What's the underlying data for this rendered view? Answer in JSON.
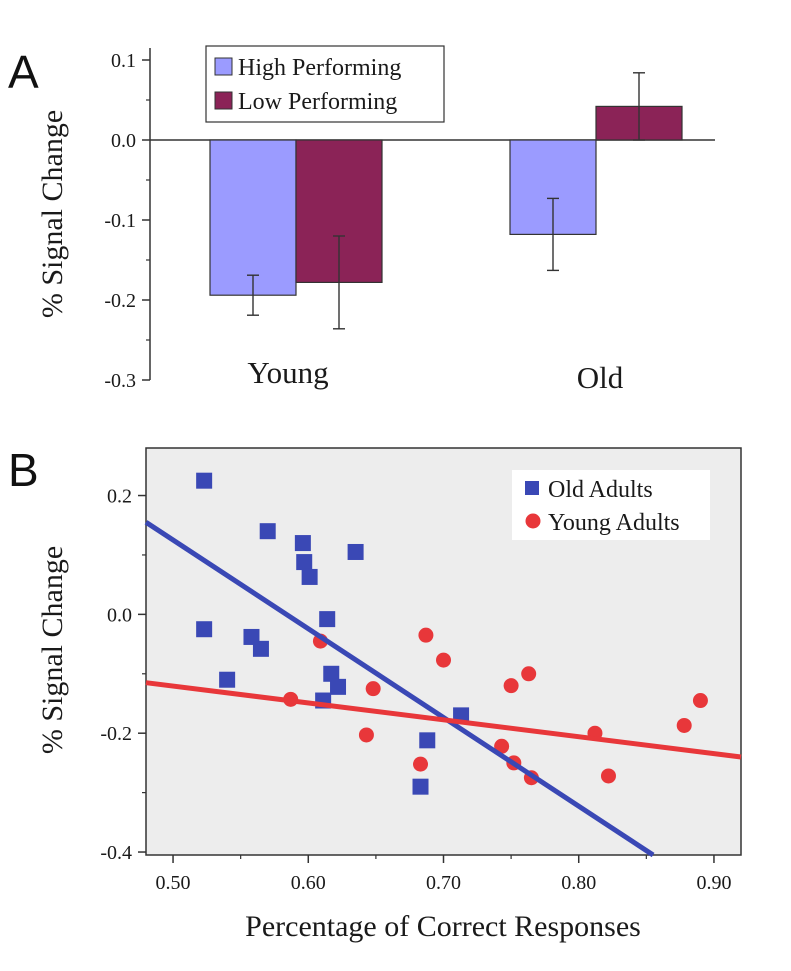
{
  "panels": {
    "a": "A",
    "b": "B"
  },
  "chart_data": [
    {
      "type": "bar",
      "panel": "A",
      "categories": [
        "Young",
        "Old"
      ],
      "series": [
        {
          "name": "High Performing",
          "color": "#9b9bff",
          "values": [
            -0.194,
            -0.118
          ],
          "errors": [
            0.025,
            0.045
          ]
        },
        {
          "name": "Low Performing",
          "color": "#8b2357",
          "values": [
            -0.178,
            0.042
          ],
          "errors": [
            0.058,
            0.042
          ]
        }
      ],
      "ylabel": "% Signal Change",
      "xlabel": "",
      "ylim": [
        -0.3,
        0.1
      ],
      "yticks": [
        0.1,
        0.0,
        -0.1,
        -0.2,
        -0.3
      ],
      "ytick_labels": [
        "0.1",
        "0.0",
        "-0.1",
        "-0.2",
        "-0.3"
      ],
      "legend": "top-left",
      "grid": false
    },
    {
      "type": "scatter",
      "panel": "B",
      "series": [
        {
          "name": "Old Adults",
          "color": "#3a48b5",
          "marker": "square",
          "points": [
            [
              0.523,
              0.225
            ],
            [
              0.523,
              -0.025
            ],
            [
              0.54,
              -0.11
            ],
            [
              0.558,
              -0.038
            ],
            [
              0.565,
              -0.058
            ],
            [
              0.57,
              0.14
            ],
            [
              0.596,
              0.12
            ],
            [
              0.597,
              0.088
            ],
            [
              0.601,
              0.063
            ],
            [
              0.611,
              -0.145
            ],
            [
              0.614,
              -0.008
            ],
            [
              0.617,
              -0.1
            ],
            [
              0.622,
              -0.122
            ],
            [
              0.635,
              0.105
            ],
            [
              0.683,
              -0.29
            ],
            [
              0.688,
              -0.212
            ],
            [
              0.713,
              -0.17
            ]
          ],
          "fit": [
            [
              0.48,
              0.155
            ],
            [
              0.855,
              -0.405
            ]
          ]
        },
        {
          "name": "Young Adults",
          "color": "#e8373a",
          "marker": "circle",
          "points": [
            [
              0.587,
              -0.143
            ],
            [
              0.609,
              -0.045
            ],
            [
              0.643,
              -0.203
            ],
            [
              0.648,
              -0.125
            ],
            [
              0.683,
              -0.252
            ],
            [
              0.687,
              -0.035
            ],
            [
              0.7,
              -0.077
            ],
            [
              0.743,
              -0.222
            ],
            [
              0.75,
              -0.12
            ],
            [
              0.752,
              -0.25
            ],
            [
              0.763,
              -0.1
            ],
            [
              0.765,
              -0.275
            ],
            [
              0.812,
              -0.2
            ],
            [
              0.822,
              -0.272
            ],
            [
              0.878,
              -0.187
            ],
            [
              0.89,
              -0.145
            ]
          ],
          "fit": [
            [
              0.48,
              -0.115
            ],
            [
              0.92,
              -0.24
            ]
          ]
        }
      ],
      "xlabel": "Percentage of Correct Responses",
      "ylabel": "% Signal Change",
      "xlim": [
        0.48,
        0.92
      ],
      "ylim": [
        -0.405,
        0.28
      ],
      "xticks": [
        0.5,
        0.6,
        0.7,
        0.8,
        0.9
      ],
      "xtick_labels": [
        "0.50",
        "0.60",
        "0.70",
        "0.80",
        "0.90"
      ],
      "yticks": [
        0.2,
        0.0,
        -0.2,
        -0.4
      ],
      "ytick_labels": [
        "0.2",
        "0.0",
        "-0.2",
        "-0.4"
      ],
      "background": "#ededed",
      "legend": "top-right",
      "grid": false
    }
  ]
}
